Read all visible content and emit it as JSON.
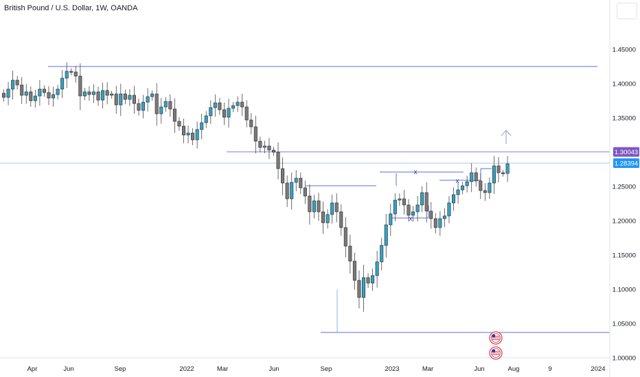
{
  "title": "British Pound / U.S. Dollar, 1W, OANDA",
  "chart_data": {
    "type": "candlestick",
    "symbol": "British Pound / U.S. Dollar",
    "interval": "1W",
    "source": "OANDA",
    "ylim": [
      1.0,
      1.455
    ],
    "y_ticks": [
      "1.45000",
      "1.40000",
      "1.35000",
      "1.30000",
      "1.25000",
      "1.20000",
      "1.15000",
      "1.10000",
      "1.05000",
      "1.00000"
    ],
    "x_labels": [
      "Apr",
      "Jun",
      "Sep",
      "2022",
      "Mar",
      "Jun",
      "Sep",
      "2023",
      "Mar",
      "Jun",
      "Aug",
      "9",
      "2024"
    ],
    "price_badges": [
      {
        "value": "1.30043",
        "color": "#7e57c2"
      },
      {
        "value": "1.28394",
        "color": "#2196f3"
      }
    ],
    "levels": [
      1.425,
      1.30043,
      1.28394,
      1.037
    ],
    "candle_colors": {
      "up": "#35a2c4",
      "down": "#7a7a7a"
    },
    "closes": [
      1.38,
      1.392,
      1.405,
      1.398,
      1.383,
      1.388,
      1.375,
      1.382,
      1.392,
      1.387,
      1.379,
      1.384,
      1.392,
      1.408,
      1.418,
      1.417,
      1.411,
      1.382,
      1.388,
      1.384,
      1.388,
      1.376,
      1.39,
      1.383,
      1.385,
      1.369,
      1.385,
      1.377,
      1.383,
      1.371,
      1.361,
      1.373,
      1.381,
      1.385,
      1.356,
      1.366,
      1.374,
      1.363,
      1.345,
      1.338,
      1.325,
      1.328,
      1.318,
      1.333,
      1.343,
      1.353,
      1.365,
      1.372,
      1.362,
      1.351,
      1.364,
      1.368,
      1.373,
      1.366,
      1.347,
      1.337,
      1.316,
      1.307,
      1.309,
      1.303,
      1.3,
      1.276,
      1.255,
      1.232,
      1.256,
      1.262,
      1.248,
      1.236,
      1.213,
      1.229,
      1.213,
      1.197,
      1.209,
      1.226,
      1.213,
      1.19,
      1.163,
      1.141,
      1.113,
      1.088,
      1.117,
      1.109,
      1.12,
      1.14,
      1.164,
      1.194,
      1.21,
      1.23,
      1.232,
      1.223,
      1.208,
      1.213,
      1.223,
      1.241,
      1.214,
      1.203,
      1.19,
      1.203,
      1.207,
      1.226,
      1.238,
      1.245,
      1.251,
      1.257,
      1.27,
      1.258,
      1.244,
      1.241,
      1.255,
      1.28,
      1.27,
      1.269,
      1.283
    ],
    "annotations": [
      {
        "label": "x",
        "value": 1.246
      },
      {
        "label": "x",
        "value": 1.234
      },
      {
        "label": "x",
        "value": 1.186
      }
    ]
  },
  "icons": [
    "event-flag-icon",
    "event-flag-icon"
  ]
}
